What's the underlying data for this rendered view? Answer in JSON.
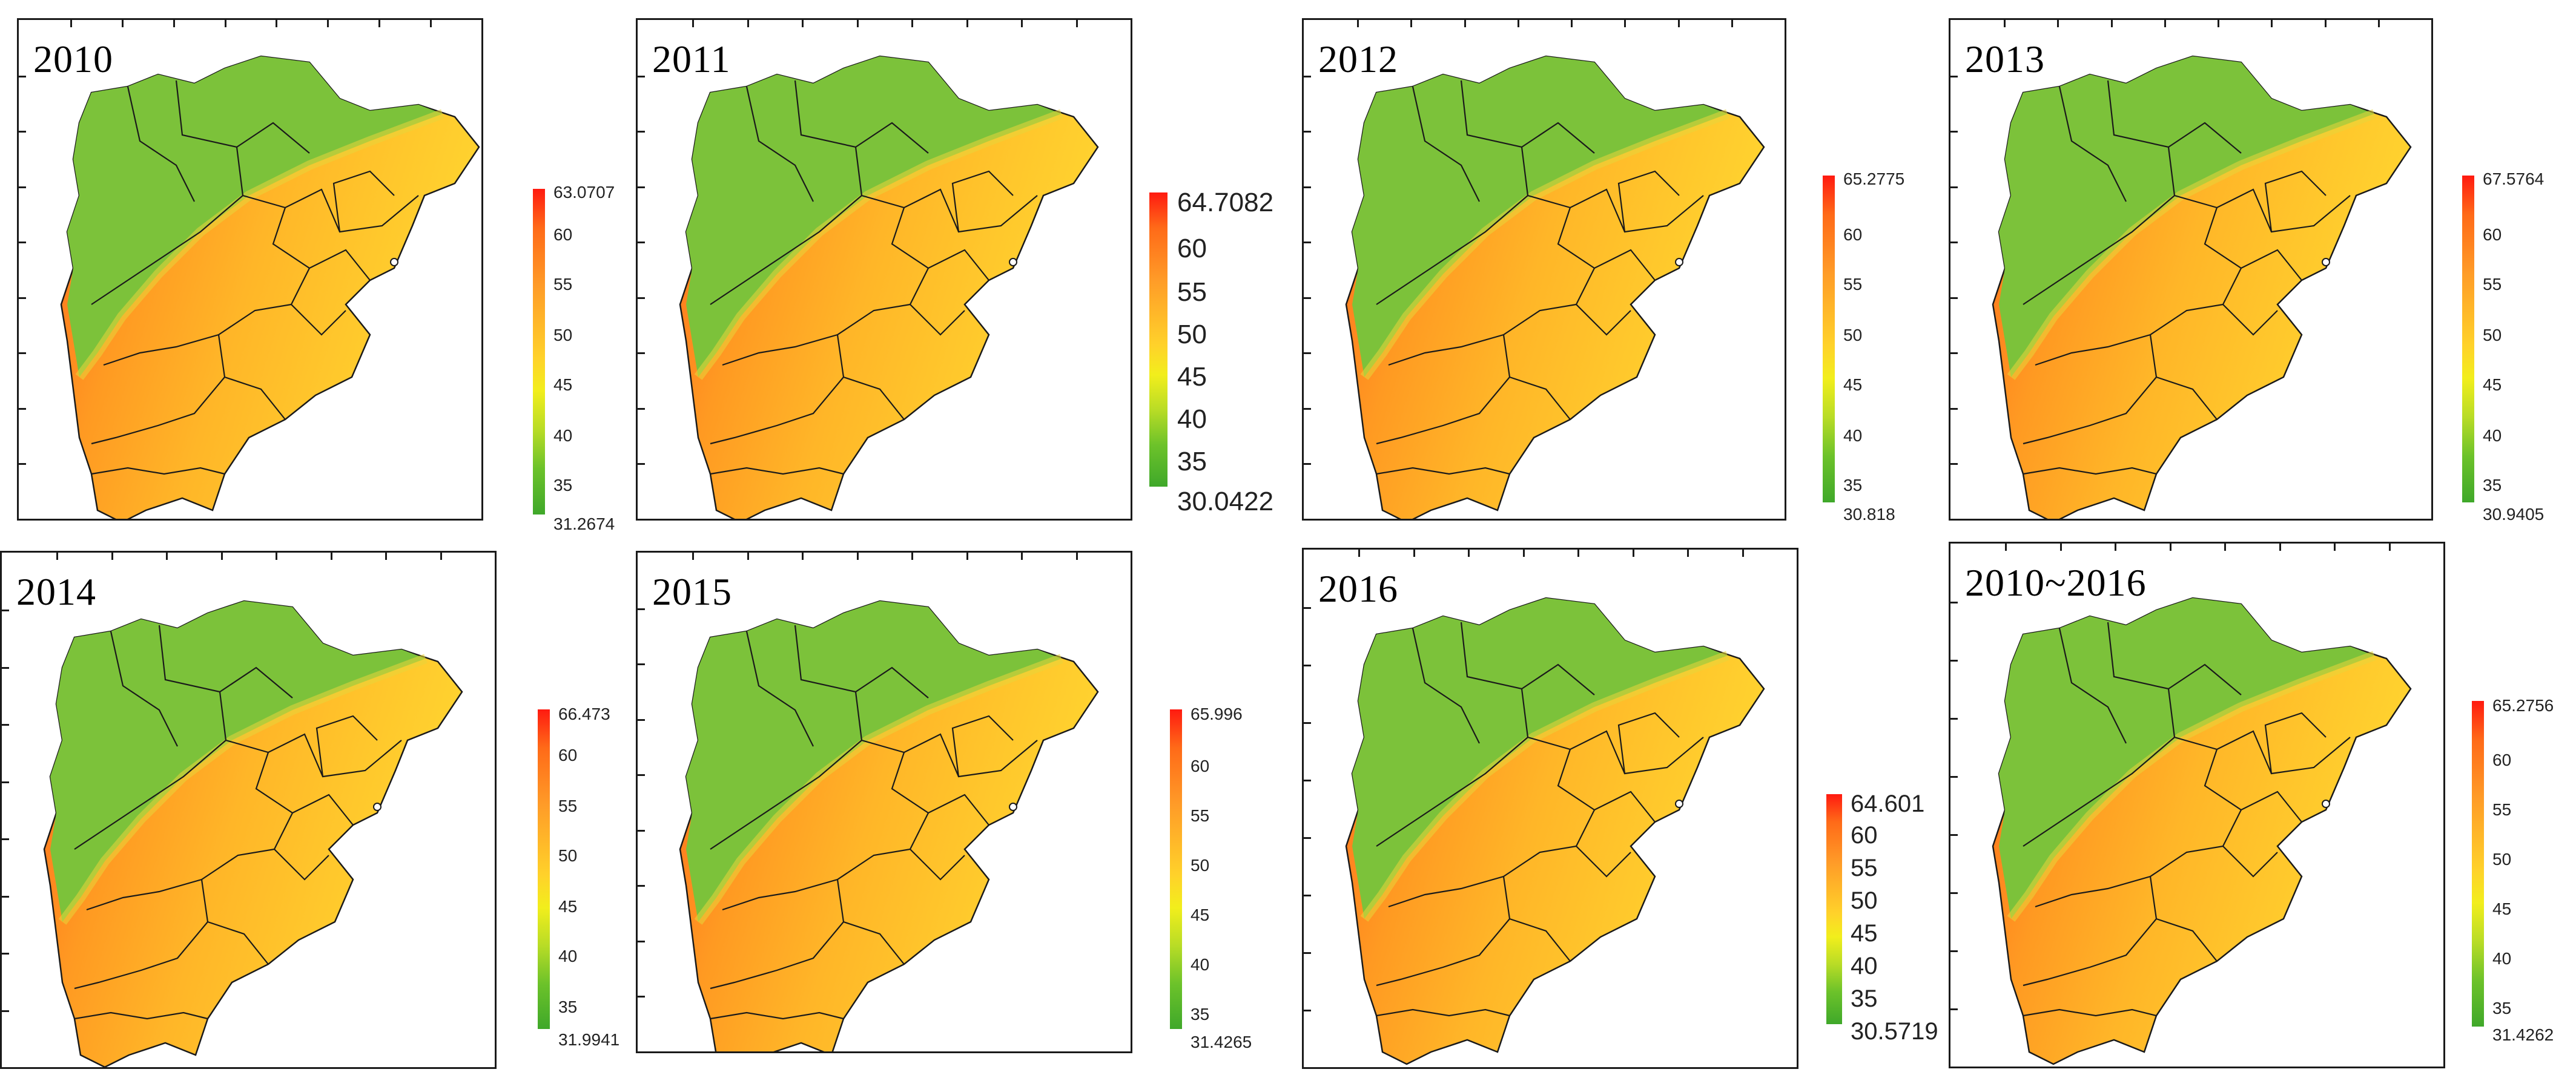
{
  "panels": [
    {
      "title": "2010",
      "legend": {
        "max": "63.0707",
        "min": "31.2674",
        "ticks": [
          "60",
          "55",
          "50",
          "45",
          "40",
          "35"
        ]
      }
    },
    {
      "title": "2011",
      "legend": {
        "max": "64.7082",
        "min": "30.0422",
        "ticks": [
          "60",
          "55",
          "50",
          "45",
          "40",
          "35"
        ]
      }
    },
    {
      "title": "2012",
      "legend": {
        "max": "65.2775",
        "min": "30.818",
        "ticks": [
          "60",
          "55",
          "50",
          "45",
          "40",
          "35"
        ]
      }
    },
    {
      "title": "2013",
      "legend": {
        "max": "67.5764",
        "min": "30.9405",
        "ticks": [
          "60",
          "55",
          "50",
          "45",
          "40",
          "35"
        ]
      }
    },
    {
      "title": "2014",
      "legend": {
        "max": "66.473",
        "min": "31.9941",
        "ticks": [
          "60",
          "55",
          "50",
          "45",
          "40",
          "35"
        ]
      }
    },
    {
      "title": "2015",
      "legend": {
        "max": "65.996",
        "min": "31.4265",
        "ticks": [
          "60",
          "55",
          "50",
          "45",
          "40",
          "35"
        ]
      }
    },
    {
      "title": "2016",
      "legend": {
        "max": "64.601",
        "min": "30.5719",
        "ticks": [
          "60",
          "55",
          "50",
          "45",
          "40",
          "35"
        ]
      }
    },
    {
      "title": "2010~2016",
      "legend": {
        "max": "65.2756",
        "min": "31.4262",
        "ticks": [
          "60",
          "55",
          "50",
          "45",
          "40",
          "35"
        ]
      }
    }
  ],
  "colors": {
    "high": "#ff1a10",
    "mid_high": "#ff9c28",
    "mid": "#ffd22a",
    "mid_low": "#b8dc26",
    "low": "#3fa82a",
    "border": "#1a1a1a"
  }
}
